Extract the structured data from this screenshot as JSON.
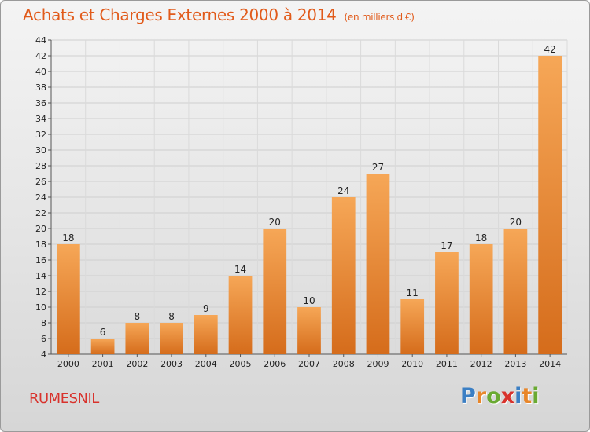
{
  "header": {
    "title": "Achats et Charges Externes 2000 à 2014",
    "subtitle": "(en milliers d'€)"
  },
  "footer": {
    "commune": "RUMESNIL",
    "logo": [
      "P",
      "r",
      "o",
      "x",
      "i",
      "t",
      "i"
    ],
    "logo_colors": [
      "#3b7fc4",
      "#e8862a",
      "#6aaa32",
      "#d8322c",
      "#3b7fc4",
      "#e8862a",
      "#6aaa32"
    ]
  },
  "chart_data": {
    "type": "bar",
    "title": "Achats et Charges Externes 2000 à 2014",
    "subtitle": "(en milliers d'€)",
    "categories": [
      "2000",
      "2001",
      "2002",
      "2003",
      "2004",
      "2005",
      "2006",
      "2007",
      "2008",
      "2009",
      "2010",
      "2011",
      "2012",
      "2013",
      "2014"
    ],
    "values": [
      18,
      6,
      8,
      8,
      9,
      14,
      20,
      10,
      24,
      27,
      11,
      17,
      18,
      20,
      42
    ],
    "ylim": [
      4,
      44
    ],
    "yticks": [
      4,
      6,
      8,
      10,
      12,
      14,
      16,
      18,
      20,
      22,
      24,
      26,
      28,
      30,
      32,
      34,
      36,
      38,
      40,
      42,
      44
    ],
    "xlabel": "",
    "ylabel": "",
    "grid": true,
    "bar_color": "#f0963f",
    "bar_color_dark": "#d86e1c"
  }
}
